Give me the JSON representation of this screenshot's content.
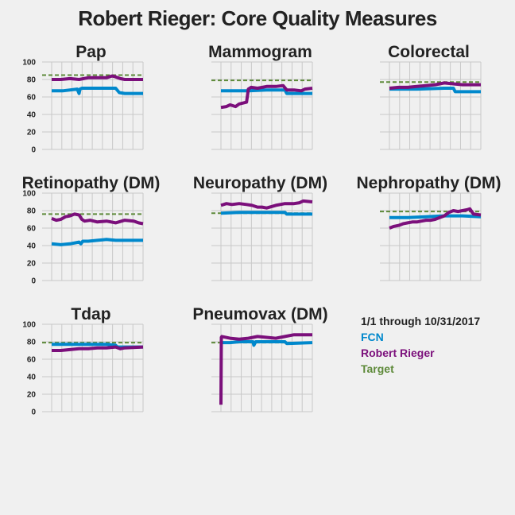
{
  "title": "Robert Rieger: Core Quality Measures",
  "colors": {
    "fcn": "#0088cc",
    "provider": "#7b0f7b",
    "target": "#5e8a3a",
    "grid": "#c8c8c8",
    "axis_text": "#222222"
  },
  "legend": {
    "period": "1/1 through 10/31/2017",
    "items": [
      {
        "label": "FCN",
        "color": "#0088cc"
      },
      {
        "label": "Robert Rieger",
        "color": "#7b0f7b"
      },
      {
        "label": "Target",
        "color": "#5e8a3a"
      }
    ]
  },
  "chart_data": [
    {
      "type": "line",
      "title": "Pap",
      "ylim": [
        0,
        100
      ],
      "yticks": [
        "100",
        "80",
        "60",
        "40",
        "20",
        "0"
      ],
      "show_yticks": true,
      "target": 85,
      "series": [
        {
          "name": "FCN",
          "x": [
            0,
            0.12,
            0.28,
            0.3,
            0.31,
            0.33,
            0.5,
            0.7,
            0.74,
            0.8,
            1.0
          ],
          "values": [
            67,
            67,
            69,
            64,
            69,
            70,
            70,
            70,
            65,
            64,
            64
          ]
        },
        {
          "name": "Robert Rieger",
          "x": [
            0,
            0.1,
            0.2,
            0.3,
            0.4,
            0.5,
            0.6,
            0.66,
            0.7,
            0.75,
            0.8,
            0.9,
            1.0
          ],
          "values": [
            80,
            80,
            81,
            80,
            82,
            82,
            82,
            84,
            83,
            81,
            80,
            80,
            80
          ]
        }
      ]
    },
    {
      "type": "line",
      "title": "Mammogram",
      "ylim": [
        0,
        100
      ],
      "yticks": [
        "100",
        "80",
        "60",
        "40",
        "20",
        "0"
      ],
      "show_yticks": false,
      "target": 79,
      "series": [
        {
          "name": "FCN",
          "x": [
            0,
            0.3,
            0.5,
            0.7,
            0.72,
            1.0
          ],
          "values": [
            67,
            67,
            68,
            68,
            64,
            64
          ]
        },
        {
          "name": "Robert Rieger",
          "x": [
            0,
            0.06,
            0.1,
            0.16,
            0.2,
            0.28,
            0.3,
            0.33,
            0.4,
            0.5,
            0.6,
            0.68,
            0.72,
            0.8,
            0.88,
            0.92,
            1.0
          ],
          "values": [
            48,
            49,
            51,
            49,
            52,
            54,
            69,
            71,
            70,
            72,
            72,
            73,
            68,
            68,
            67,
            69,
            70
          ]
        }
      ]
    },
    {
      "type": "line",
      "title": "Colorectal",
      "ylim": [
        0,
        100
      ],
      "yticks": [
        "100",
        "80",
        "60",
        "40",
        "20",
        "0"
      ],
      "show_yticks": false,
      "target": 77,
      "series": [
        {
          "name": "FCN",
          "x": [
            0,
            0.3,
            0.6,
            0.7,
            0.72,
            1.0
          ],
          "values": [
            69,
            69,
            70,
            70,
            66,
            66
          ]
        },
        {
          "name": "Robert Rieger",
          "x": [
            0,
            0.1,
            0.2,
            0.3,
            0.4,
            0.5,
            0.55,
            0.6,
            0.7,
            0.8,
            0.9,
            1.0
          ],
          "values": [
            70,
            71,
            71,
            72,
            73,
            74,
            75,
            76,
            75,
            74,
            74,
            74
          ]
        }
      ]
    },
    {
      "type": "line",
      "title": "Retinopathy (DM)",
      "ylim": [
        0,
        100
      ],
      "yticks": [
        "100",
        "80",
        "60",
        "40",
        "20",
        "0"
      ],
      "show_yticks": true,
      "target": 76,
      "series": [
        {
          "name": "FCN",
          "x": [
            0,
            0.1,
            0.2,
            0.3,
            0.32,
            0.34,
            0.4,
            0.5,
            0.6,
            0.7,
            0.8,
            1.0
          ],
          "values": [
            42,
            41,
            42,
            44,
            42,
            45,
            45,
            46,
            47,
            46,
            46,
            46
          ]
        },
        {
          "name": "Robert Rieger",
          "x": [
            0,
            0.05,
            0.1,
            0.15,
            0.2,
            0.25,
            0.3,
            0.33,
            0.36,
            0.42,
            0.5,
            0.6,
            0.7,
            0.8,
            0.9,
            0.95,
            1.0
          ],
          "values": [
            71,
            69,
            70,
            73,
            74,
            76,
            75,
            70,
            68,
            69,
            67,
            68,
            66,
            69,
            68,
            66,
            65
          ]
        }
      ]
    },
    {
      "type": "line",
      "title": "Neuropathy (DM)",
      "ylim": [
        0,
        100
      ],
      "yticks": [
        "100",
        "80",
        "60",
        "40",
        "20",
        "0"
      ],
      "show_yticks": false,
      "target": 77,
      "series": [
        {
          "name": "FCN",
          "x": [
            0,
            0.2,
            0.4,
            0.6,
            0.7,
            0.72,
            1.0
          ],
          "values": [
            77,
            78,
            78,
            78,
            78,
            76,
            76
          ]
        },
        {
          "name": "Robert Rieger",
          "x": [
            0,
            0.06,
            0.12,
            0.2,
            0.28,
            0.34,
            0.4,
            0.45,
            0.5,
            0.6,
            0.7,
            0.8,
            0.86,
            0.9,
            1.0
          ],
          "values": [
            86,
            88,
            87,
            88,
            87,
            86,
            84,
            84,
            83,
            86,
            88,
            88,
            89,
            91,
            90
          ]
        }
      ]
    },
    {
      "type": "line",
      "title": "Nephropathy (DM)",
      "ylim": [
        0,
        100
      ],
      "yticks": [
        "100",
        "80",
        "60",
        "40",
        "20",
        "0"
      ],
      "show_yticks": false,
      "target": 79,
      "series": [
        {
          "name": "FCN",
          "x": [
            0,
            0.2,
            0.4,
            0.6,
            0.8,
            1.0
          ],
          "values": [
            72,
            72,
            73,
            74,
            74,
            73
          ]
        },
        {
          "name": "Robert Rieger",
          "x": [
            0,
            0.05,
            0.1,
            0.15,
            0.2,
            0.25,
            0.3,
            0.35,
            0.4,
            0.45,
            0.5,
            0.55,
            0.6,
            0.65,
            0.7,
            0.75,
            0.8,
            0.85,
            0.88,
            0.92,
            1.0
          ],
          "values": [
            60,
            62,
            63,
            65,
            66,
            67,
            67,
            68,
            69,
            69,
            70,
            72,
            74,
            78,
            80,
            79,
            80,
            81,
            82,
            76,
            75
          ]
        }
      ]
    },
    {
      "type": "line",
      "title": "Tdap",
      "ylim": [
        0,
        100
      ],
      "yticks": [
        "100",
        "80",
        "60",
        "40",
        "20",
        "0"
      ],
      "show_yticks": true,
      "target": 79,
      "series": [
        {
          "name": "FCN",
          "x": [
            0,
            0.2,
            0.4,
            0.6,
            0.7,
            0.72,
            1.0
          ],
          "values": [
            77,
            77,
            77,
            77,
            76,
            74,
            74
          ]
        },
        {
          "name": "Robert Rieger",
          "x": [
            0,
            0.1,
            0.2,
            0.3,
            0.4,
            0.5,
            0.6,
            0.7,
            0.75,
            0.8,
            1.0
          ],
          "values": [
            70,
            70,
            71,
            72,
            72,
            73,
            73,
            74,
            72,
            73,
            74
          ]
        }
      ]
    },
    {
      "type": "line",
      "title": "Pneumovax (DM)",
      "ylim": [
        0,
        100
      ],
      "yticks": [
        "100",
        "80",
        "60",
        "40",
        "20",
        "0"
      ],
      "show_yticks": false,
      "target": 79,
      "series": [
        {
          "name": "FCN",
          "x": [
            0,
            0.1,
            0.2,
            0.35,
            0.36,
            0.38,
            0.5,
            0.7,
            0.72,
            1.0
          ],
          "values": [
            79,
            79,
            80,
            80,
            76,
            80,
            80,
            80,
            78,
            79
          ]
        },
        {
          "name": "Robert Rieger",
          "x": [
            0,
            0.004,
            0.01,
            0.1,
            0.2,
            0.3,
            0.4,
            0.5,
            0.6,
            0.7,
            0.8,
            0.9,
            1.0
          ],
          "values": [
            8,
            85,
            86,
            84,
            83,
            84,
            86,
            85,
            84,
            86,
            88,
            88,
            88
          ]
        }
      ]
    }
  ]
}
